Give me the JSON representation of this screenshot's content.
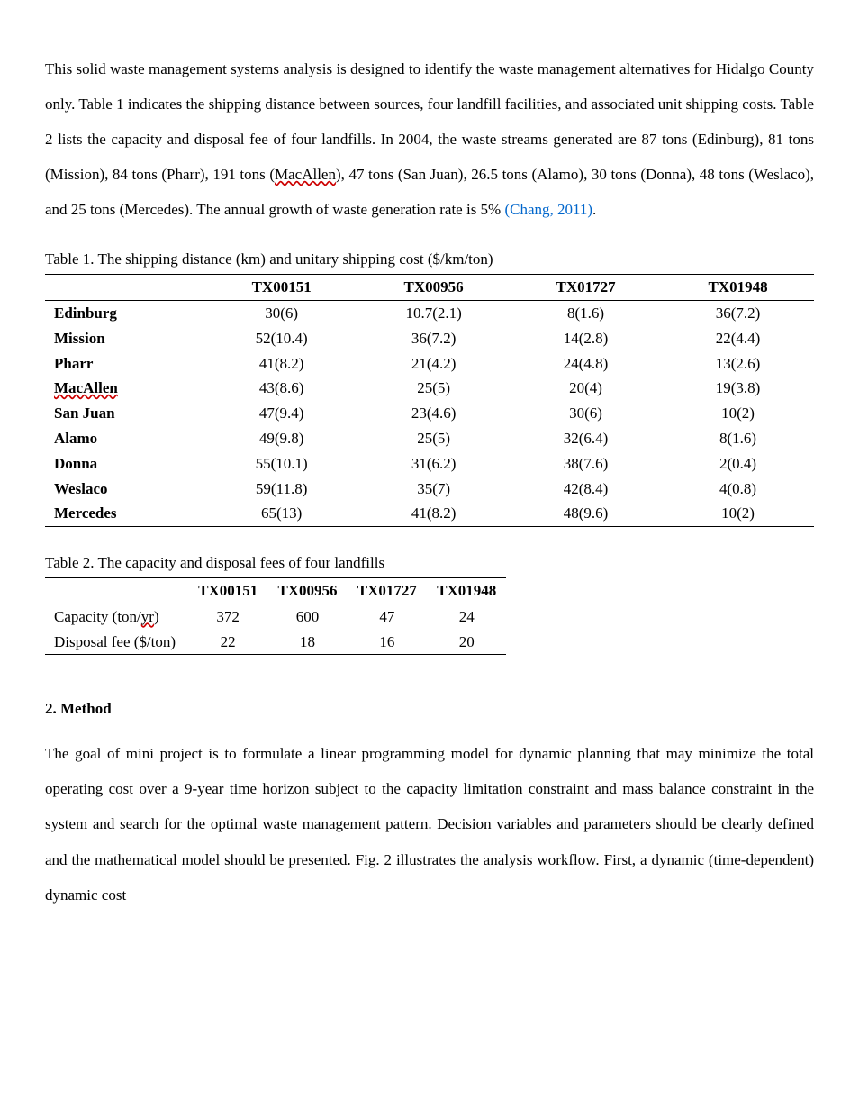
{
  "para1": {
    "pre": "This solid waste management systems analysis is designed to identify the waste management alternatives for Hidalgo County only. Table 1 indicates the shipping distance between sources, four landfill facilities, and associated unit shipping costs. Table 2 lists the capacity and disposal fee of four landfills. In 2004, the waste streams generated are 87 tons (Edinburg), 81 tons (Mission), 84 tons (Pharr), 191 tons (",
    "macallen": "MacAllen",
    "mid": "), 47 tons (San Juan), 26.5 tons (Alamo), 30 tons (Donna), 48 tons (Weslaco), and 25 tons (Mercedes). The annual growth of waste generation rate is 5% ",
    "cite": "(Chang, 2011)",
    "post": "."
  },
  "table1": {
    "caption": "Table 1. The shipping distance (km) and unitary shipping cost ($/km/ton)",
    "columns": [
      "",
      "TX00151",
      "TX00956",
      "TX01727",
      "TX01948"
    ],
    "rows": [
      {
        "label": "Edinburg",
        "wavy": false,
        "cells": [
          "30(6)",
          "10.7(2.1)",
          "8(1.6)",
          "36(7.2)"
        ]
      },
      {
        "label": "Mission",
        "wavy": false,
        "cells": [
          "52(10.4)",
          "36(7.2)",
          "14(2.8)",
          "22(4.4)"
        ]
      },
      {
        "label": "Pharr",
        "wavy": false,
        "cells": [
          "41(8.2)",
          "21(4.2)",
          "24(4.8)",
          "13(2.6)"
        ]
      },
      {
        "label": "MacAllen",
        "wavy": true,
        "cells": [
          "43(8.6)",
          "25(5)",
          "20(4)",
          "19(3.8)"
        ]
      },
      {
        "label": "San Juan",
        "wavy": false,
        "cells": [
          "47(9.4)",
          "23(4.6)",
          "30(6)",
          "10(2)"
        ]
      },
      {
        "label": "Alamo",
        "wavy": false,
        "cells": [
          "49(9.8)",
          "25(5)",
          "32(6.4)",
          "8(1.6)"
        ]
      },
      {
        "label": "Donna",
        "wavy": false,
        "cells": [
          "55(10.1)",
          "31(6.2)",
          "38(7.6)",
          "2(0.4)"
        ]
      },
      {
        "label": "Weslaco",
        "wavy": false,
        "cells": [
          "59(11.8)",
          "35(7)",
          "42(8.4)",
          "4(0.8)"
        ]
      },
      {
        "label": "Mercedes",
        "wavy": false,
        "cells": [
          "65(13)",
          "41(8.2)",
          "48(9.6)",
          "10(2)"
        ]
      }
    ]
  },
  "table2": {
    "caption": "Table 2. The capacity and disposal fees of four landfills",
    "columns": [
      "",
      "TX00151",
      "TX00956",
      "TX01727",
      "TX01948"
    ],
    "rows": [
      {
        "label_pre": "Capacity (ton/",
        "label_wavy": "yr",
        "label_post": ")",
        "cells": [
          "372",
          "600",
          "47",
          "24"
        ]
      },
      {
        "label_pre": "Disposal fee ($/ton)",
        "label_wavy": "",
        "label_post": "",
        "cells": [
          "22",
          "18",
          "16",
          "20"
        ]
      }
    ]
  },
  "section2": {
    "heading": "2.   Method",
    "para": "The goal of mini project is to formulate a linear programming model for dynamic planning that may minimize the total operating cost over a 9-year time horizon subject to the capacity limitation constraint and mass balance constraint in the system and search for the optimal waste management pattern. Decision variables and parameters should be clearly defined and the mathematical model should be presented. Fig. 2 illustrates the analysis workflow. First, a dynamic (time-dependent) dynamic cost"
  }
}
